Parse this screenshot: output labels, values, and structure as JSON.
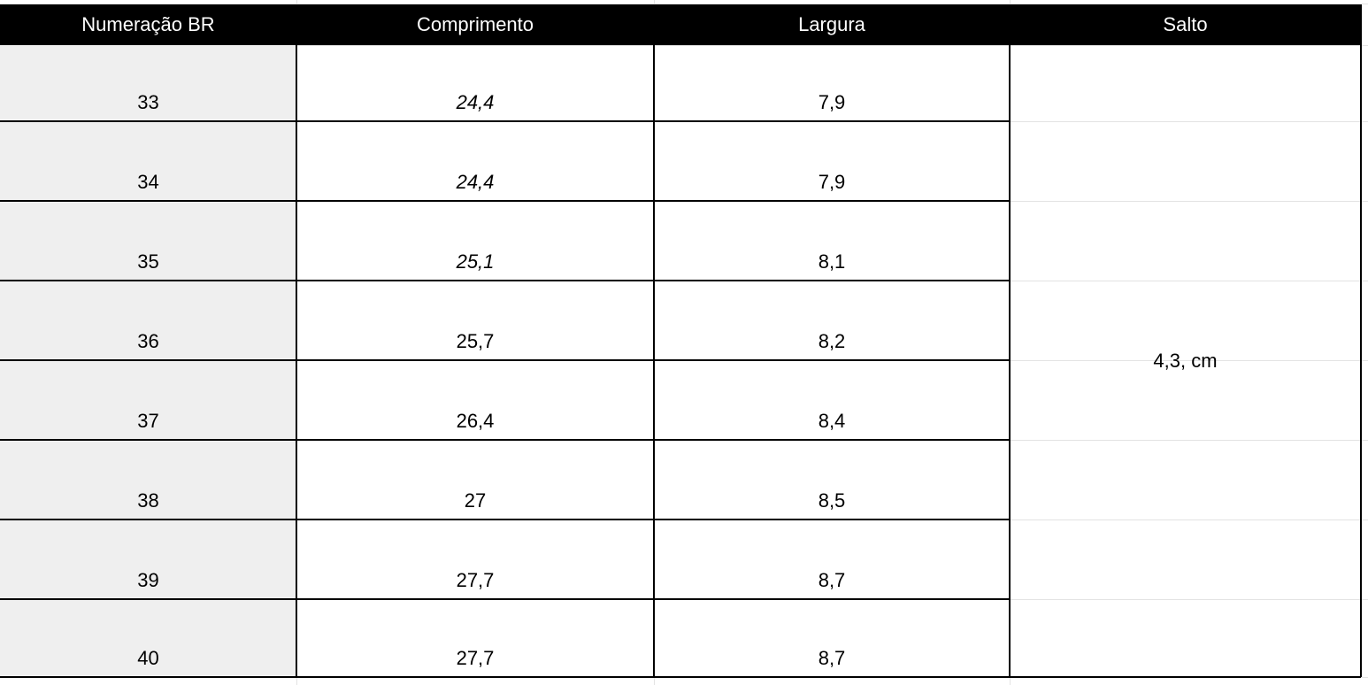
{
  "table": {
    "headers": [
      "Numeração BR",
      "Comprimento",
      "Largura",
      "Salto"
    ],
    "rows": [
      [
        "33",
        "24,4",
        "7,9"
      ],
      [
        "34",
        "24,4",
        "7,9"
      ],
      [
        "35",
        "25,1",
        "8,1"
      ],
      [
        "36",
        "25,7",
        "8,2"
      ],
      [
        "37",
        "26,4",
        "8,4"
      ],
      [
        "38",
        "27",
        "8,5"
      ],
      [
        "39",
        "27,7",
        "8,7"
      ],
      [
        "40",
        "27,7",
        "8,7"
      ]
    ],
    "salto": "4,3, cm"
  }
}
